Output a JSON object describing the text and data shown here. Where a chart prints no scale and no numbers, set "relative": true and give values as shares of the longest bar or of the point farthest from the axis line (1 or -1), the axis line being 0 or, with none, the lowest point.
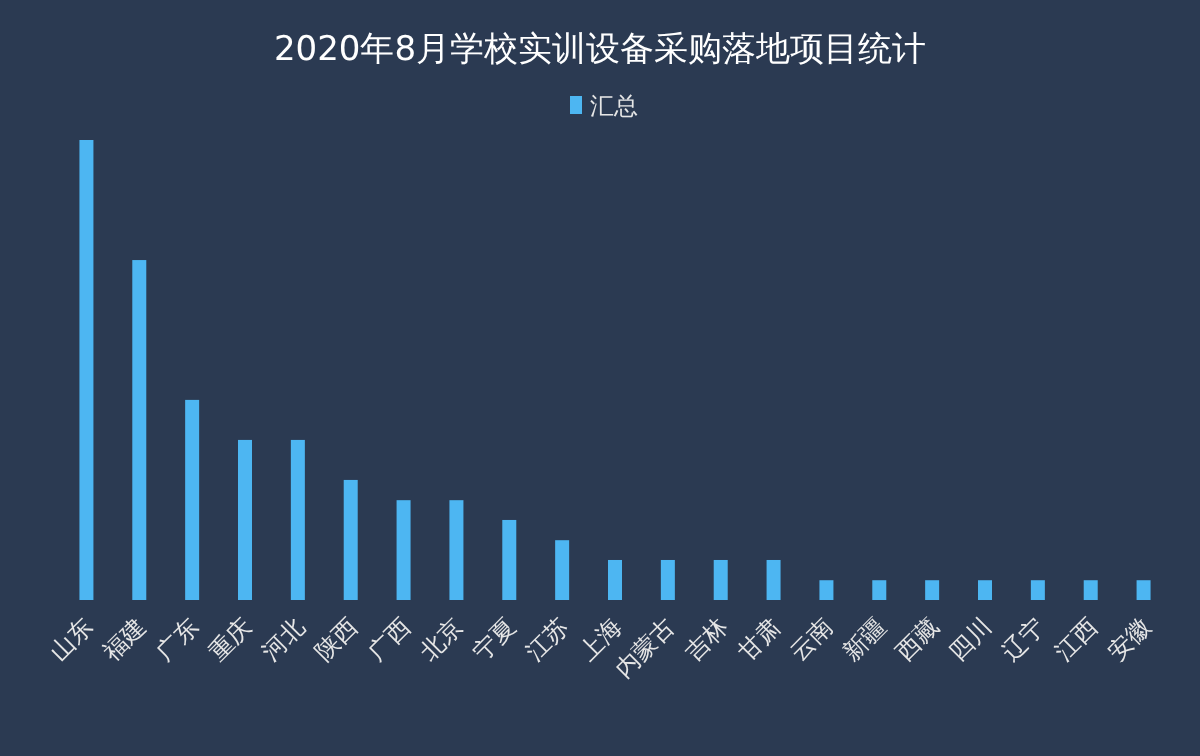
{
  "chart_data": {
    "type": "bar",
    "title": "2020年8月学校实训设备采购落地项目统计",
    "relative": true,
    "legend": "top",
    "categories": [
      "山东",
      "福建",
      "广东",
      "重庆",
      "河北",
      "陕西",
      "广西",
      "北京",
      "宁夏",
      "江苏",
      "上海",
      "内蒙古",
      "吉林",
      "甘肃",
      "云南",
      "新疆",
      "西藏",
      "四川",
      "辽宁",
      "江西",
      "安徽"
    ],
    "series": [
      {
        "name": "汇总",
        "color": "#4db6f2",
        "values": [
          1,
          0.739,
          0.435,
          0.348,
          0.348,
          0.261,
          0.217,
          0.217,
          0.174,
          0.13,
          0.087,
          0.087,
          0.087,
          0.087,
          0.043,
          0.043,
          0.043,
          0.043,
          0.043,
          0.043,
          0.043
        ]
      }
    ]
  }
}
